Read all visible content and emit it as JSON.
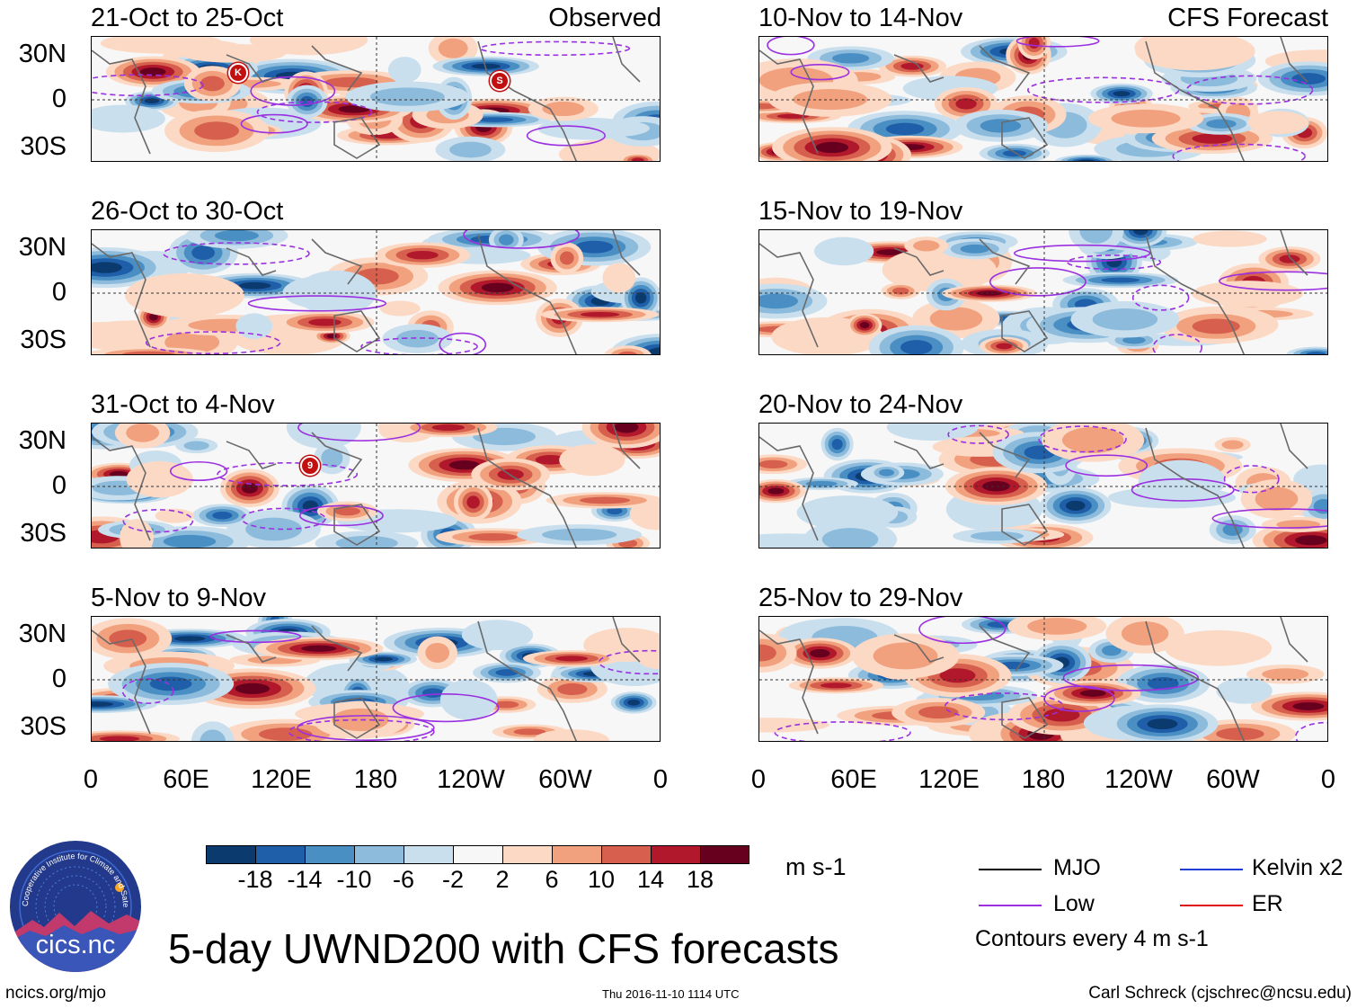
{
  "panels_observed": [
    {
      "title": "21-Oct to 25-Oct",
      "label": "Observed",
      "storms": [
        "K",
        "S"
      ]
    },
    {
      "title": "26-Oct to 30-Oct",
      "label": "",
      "storms": []
    },
    {
      "title": "31-Oct to 4-Nov",
      "label": "",
      "storms": [
        "9"
      ]
    },
    {
      "title": "5-Nov to 9-Nov",
      "label": "",
      "storms": []
    }
  ],
  "panels_forecast": [
    {
      "title": "10-Nov to 14-Nov",
      "label": "CFS Forecast"
    },
    {
      "title": "15-Nov to 19-Nov",
      "label": ""
    },
    {
      "title": "20-Nov to 24-Nov",
      "label": ""
    },
    {
      "title": "25-Nov to 29-Nov",
      "label": ""
    }
  ],
  "colorbar": {
    "colors": [
      "#0a3a6e",
      "#1f5ea8",
      "#4a8fc4",
      "#8dbbdc",
      "#c9dfee",
      "#f7f7f7",
      "#fcd9c4",
      "#f1a17e",
      "#d6604d",
      "#b2182b",
      "#67001f"
    ],
    "ticks": [
      "-18",
      "-14",
      "-10",
      "-6",
      "-2",
      "2",
      "6",
      "10",
      "14",
      "18"
    ],
    "units": "m s-1"
  },
  "legend": {
    "items": [
      {
        "label": "MJO",
        "color": "#000000"
      },
      {
        "label": "Kelvin x2",
        "color": "#1f3fd6"
      },
      {
        "label": "Low",
        "color": "#9b30e0"
      },
      {
        "label": "ER",
        "color": "#e01010"
      }
    ],
    "note": "Contours every 4 m s-1"
  },
  "title": "5-day UWND200 with CFS forecasts",
  "logo_text": "cics.nc",
  "logo_ring_text": "Cooperative Institute for Climate and Satellites",
  "footer": {
    "left": "ncics.org/mjo",
    "center": "Thu 2016-11-10 1114 UTC",
    "right": "Carl Schreck (cjschrec@ncsu.edu)"
  },
  "chart_data": {
    "type": "heatmap",
    "variable": "UWND200 (200-hPa zonal wind anomaly)",
    "units": "m s-1",
    "x_axis": {
      "ticks": [
        "0",
        "60E",
        "120E",
        "180",
        "120W",
        "60W",
        "0"
      ],
      "range_deg_east": [
        0,
        360
      ]
    },
    "y_axis": {
      "ticks": [
        "30N",
        "0",
        "30S"
      ],
      "range_deg_lat": [
        -40,
        40
      ]
    },
    "panels": [
      {
        "period": "21-Oct to 25-Oct",
        "source": "Observed"
      },
      {
        "period": "26-Oct to 30-Oct",
        "source": "Observed"
      },
      {
        "period": "31-Oct to 4-Nov",
        "source": "Observed"
      },
      {
        "period": "5-Nov to 9-Nov",
        "source": "Observed"
      },
      {
        "period": "10-Nov to 14-Nov",
        "source": "CFS Forecast"
      },
      {
        "period": "15-Nov to 19-Nov",
        "source": "CFS Forecast"
      },
      {
        "period": "20-Nov to 24-Nov",
        "source": "CFS Forecast"
      },
      {
        "period": "25-Nov to 29-Nov",
        "source": "CFS Forecast"
      }
    ],
    "color_levels": [
      -18,
      -14,
      -10,
      -6,
      -2,
      2,
      6,
      10,
      14,
      18
    ],
    "contour_interval": "4 m s-1"
  }
}
